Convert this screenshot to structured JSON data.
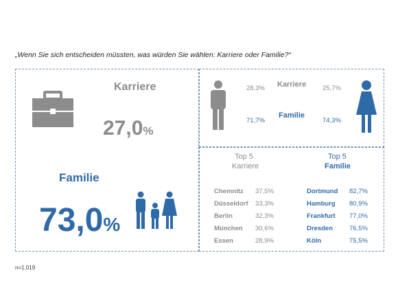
{
  "question": "„Wenn Sie sich entscheiden müssten, was würden Sie wählen: Karriere oder Familie?“",
  "footnote": "n=1.019",
  "colors": {
    "karriere": "#8c8c8c",
    "familie": "#2f6aa8",
    "border": "#6f8fb8"
  },
  "icons": {
    "karriere": "briefcase-icon",
    "familie": "family-icon",
    "male": "man-icon",
    "female": "woman-icon"
  },
  "chart_data": [
    {
      "type": "table",
      "title": "",
      "categories": [
        "Karriere",
        "Familie"
      ],
      "values": [
        27.0,
        73.0
      ],
      "display": {
        "karriere_label": "Karriere",
        "karriere_value": "27,0",
        "familie_label": "Familie",
        "familie_value": "73,0",
        "unit": "%"
      }
    },
    {
      "type": "table",
      "categories": [
        "Karriere",
        "Familie"
      ],
      "series": [
        {
          "icon": "man-icon",
          "values": [
            28.3,
            71.7
          ]
        },
        {
          "icon": "woman-icon",
          "values": [
            25.7,
            74.3
          ]
        }
      ],
      "display": {
        "karriere_label": "Karriere",
        "familie_label": "Familie",
        "male_karriere": "28,3%",
        "male_familie": "71,7%",
        "female_karriere": "25,7%",
        "female_familie": "74,3%"
      }
    },
    {
      "type": "table",
      "title": "Top 5 Karriere",
      "title_lines": [
        "Top 5",
        "Karriere"
      ],
      "rows": [
        {
          "city": "Chemnitz",
          "value": "37,5%"
        },
        {
          "city": "Düsseldorf",
          "value": "33,3%"
        },
        {
          "city": "Berlin",
          "value": "32,3%"
        },
        {
          "city": "München",
          "value": "30,6%"
        },
        {
          "city": "Essen",
          "value": "28,9%"
        }
      ],
      "values": [
        37.5,
        33.3,
        32.3,
        30.6,
        28.9
      ]
    },
    {
      "type": "table",
      "title": "Top 5 Familie",
      "title_lines": [
        "Top 5",
        "Familie"
      ],
      "rows": [
        {
          "city": "Dortmund",
          "value": "82,7%"
        },
        {
          "city": "Hamburg",
          "value": "80,9%"
        },
        {
          "city": "Frankfurt",
          "value": "77,0%"
        },
        {
          "city": "Dresden",
          "value": "76,5%"
        },
        {
          "city": "Köln",
          "value": "75,5%"
        }
      ],
      "values": [
        82.7,
        80.9,
        77.0,
        76.5,
        75.5
      ]
    }
  ]
}
